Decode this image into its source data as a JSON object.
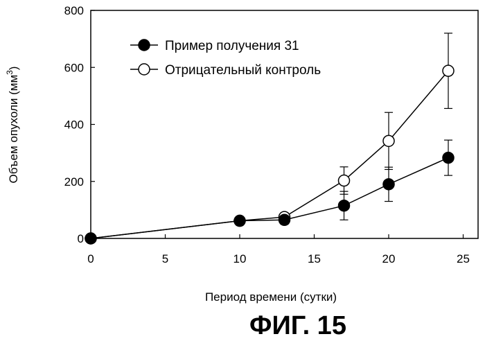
{
  "chart_data": {
    "type": "line",
    "title": "",
    "xlabel": "Период времени (сутки)",
    "ylabel": "Объем опухоли (мм3)",
    "ylabel_main": "Объем опухоли (мм",
    "ylabel_sup": "3",
    "ylabel_close": ")",
    "xlim": [
      0,
      26
    ],
    "ylim": [
      0,
      800
    ],
    "xticks": [
      0,
      5,
      10,
      15,
      20,
      25
    ],
    "yticks": [
      0,
      200,
      400,
      600,
      800
    ],
    "grid": false,
    "legend_position": "top-left",
    "series": [
      {
        "name": "Пример получения 31",
        "marker": "filled-circle",
        "x": [
          0,
          10,
          13,
          17,
          20,
          24
        ],
        "values": [
          0,
          62,
          65,
          115,
          190,
          283
        ],
        "error": [
          0,
          0,
          15,
          50,
          60,
          62
        ]
      },
      {
        "name": "Отрицательный контроль",
        "marker": "open-circle",
        "x": [
          0,
          10,
          13,
          17,
          20,
          24
        ],
        "values": [
          0,
          62,
          75,
          203,
          342,
          588
        ],
        "error": [
          0,
          15,
          15,
          48,
          100,
          132
        ]
      }
    ]
  },
  "caption": "ФИГ. 15"
}
